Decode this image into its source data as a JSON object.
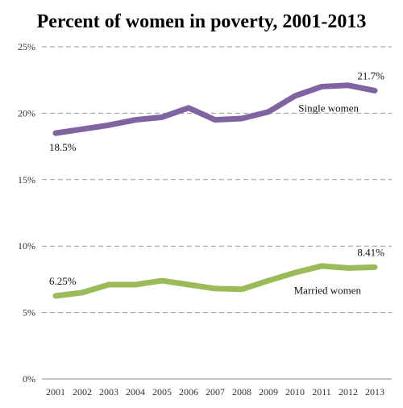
{
  "chart_data": {
    "type": "line",
    "title": "Percent of women in poverty, 2001-2013",
    "x": [
      "2001",
      "2002",
      "2003",
      "2004",
      "2005",
      "2006",
      "2007",
      "2008",
      "2009",
      "2010",
      "2011",
      "2012",
      "2013"
    ],
    "y_ticks": [
      "0%",
      "5%",
      "10%",
      "15%",
      "20%",
      "25%"
    ],
    "ylim": [
      0,
      25
    ],
    "grid": true,
    "series": [
      {
        "name": "Single women",
        "color": "#8064a2",
        "values": [
          18.5,
          18.8,
          19.1,
          19.5,
          19.7,
          20.4,
          19.5,
          19.6,
          20.1,
          21.3,
          22.0,
          22.1,
          21.7
        ],
        "start_label": "18.5%",
        "end_label": "21.7%"
      },
      {
        "name": "Married women",
        "color": "#9bbb59",
        "values": [
          6.25,
          6.5,
          7.1,
          7.1,
          7.4,
          7.1,
          6.8,
          6.75,
          7.4,
          8.0,
          8.5,
          8.35,
          8.41
        ],
        "start_label": "6.25%",
        "end_label": "8.41%"
      }
    ]
  }
}
